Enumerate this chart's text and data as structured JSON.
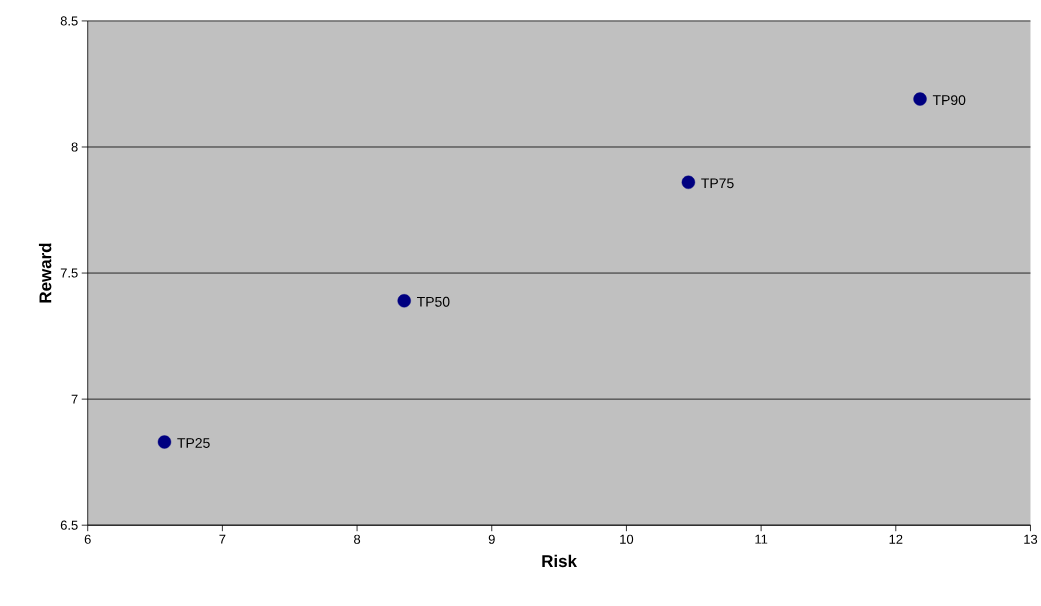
{
  "chart_data": {
    "type": "scatter",
    "xlabel": "Risk",
    "ylabel": "Reward",
    "x": [
      6.57,
      8.35,
      10.46,
      12.18
    ],
    "values": [
      6.83,
      7.39,
      7.86,
      8.19
    ],
    "color": "#000080",
    "marker": "circle",
    "xlim": [
      6,
      13
    ],
    "xticks": [
      6,
      7,
      8,
      9,
      10,
      11,
      12,
      13
    ],
    "ylim": [
      6.5,
      8.5
    ],
    "yticks": [
      6.5,
      7,
      7.5,
      8,
      8.5
    ],
    "grid": "y",
    "annotations": [
      {
        "text": "TP25",
        "x": 6.57,
        "y": 6.83
      },
      {
        "text": "TP50",
        "x": 8.35,
        "y": 7.39
      },
      {
        "text": "TP75",
        "x": 10.46,
        "y": 7.86
      },
      {
        "text": "TP90",
        "x": 12.18,
        "y": 8.19
      }
    ]
  }
}
